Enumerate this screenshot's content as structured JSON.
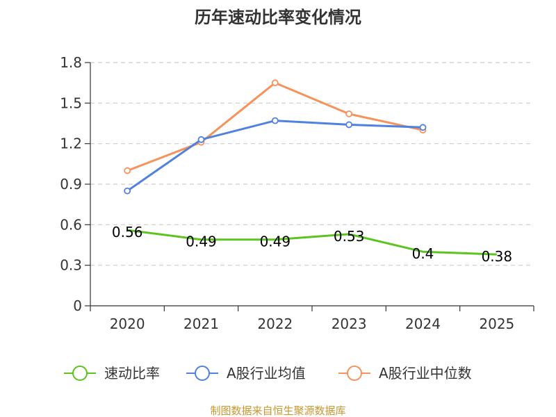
{
  "chart_data": {
    "type": "line",
    "title": "历年速动比率变化情况",
    "categories": [
      "2020",
      "2021",
      "2022",
      "2023",
      "2024",
      "2025"
    ],
    "y_ticks": [
      "0",
      "0.3",
      "0.6",
      "0.9",
      "1.2",
      "1.5",
      "1.8"
    ],
    "ylim": [
      0,
      1.8
    ],
    "grid": true,
    "legend_position": "bottom",
    "series": [
      {
        "name": "速动比率",
        "color": "#5cc41f",
        "values": [
          0.56,
          0.49,
          0.49,
          0.53,
          0.4,
          0.38
        ],
        "labels": [
          "0.56",
          "0.49",
          "0.49",
          "0.53",
          "0.4",
          "0.38"
        ],
        "show_labels": true,
        "markers": false
      },
      {
        "name": "A股行业均值",
        "color": "#4f81e0",
        "values": [
          0.85,
          1.23,
          1.37,
          1.34,
          1.32,
          null
        ],
        "show_labels": false,
        "markers": true
      },
      {
        "name": "A股行业中位数",
        "color": "#f7925a",
        "values": [
          1.0,
          1.21,
          1.65,
          1.42,
          1.3,
          null
        ],
        "show_labels": false,
        "markers": true
      }
    ],
    "source": "制图数据来自恒生聚源数据库"
  }
}
